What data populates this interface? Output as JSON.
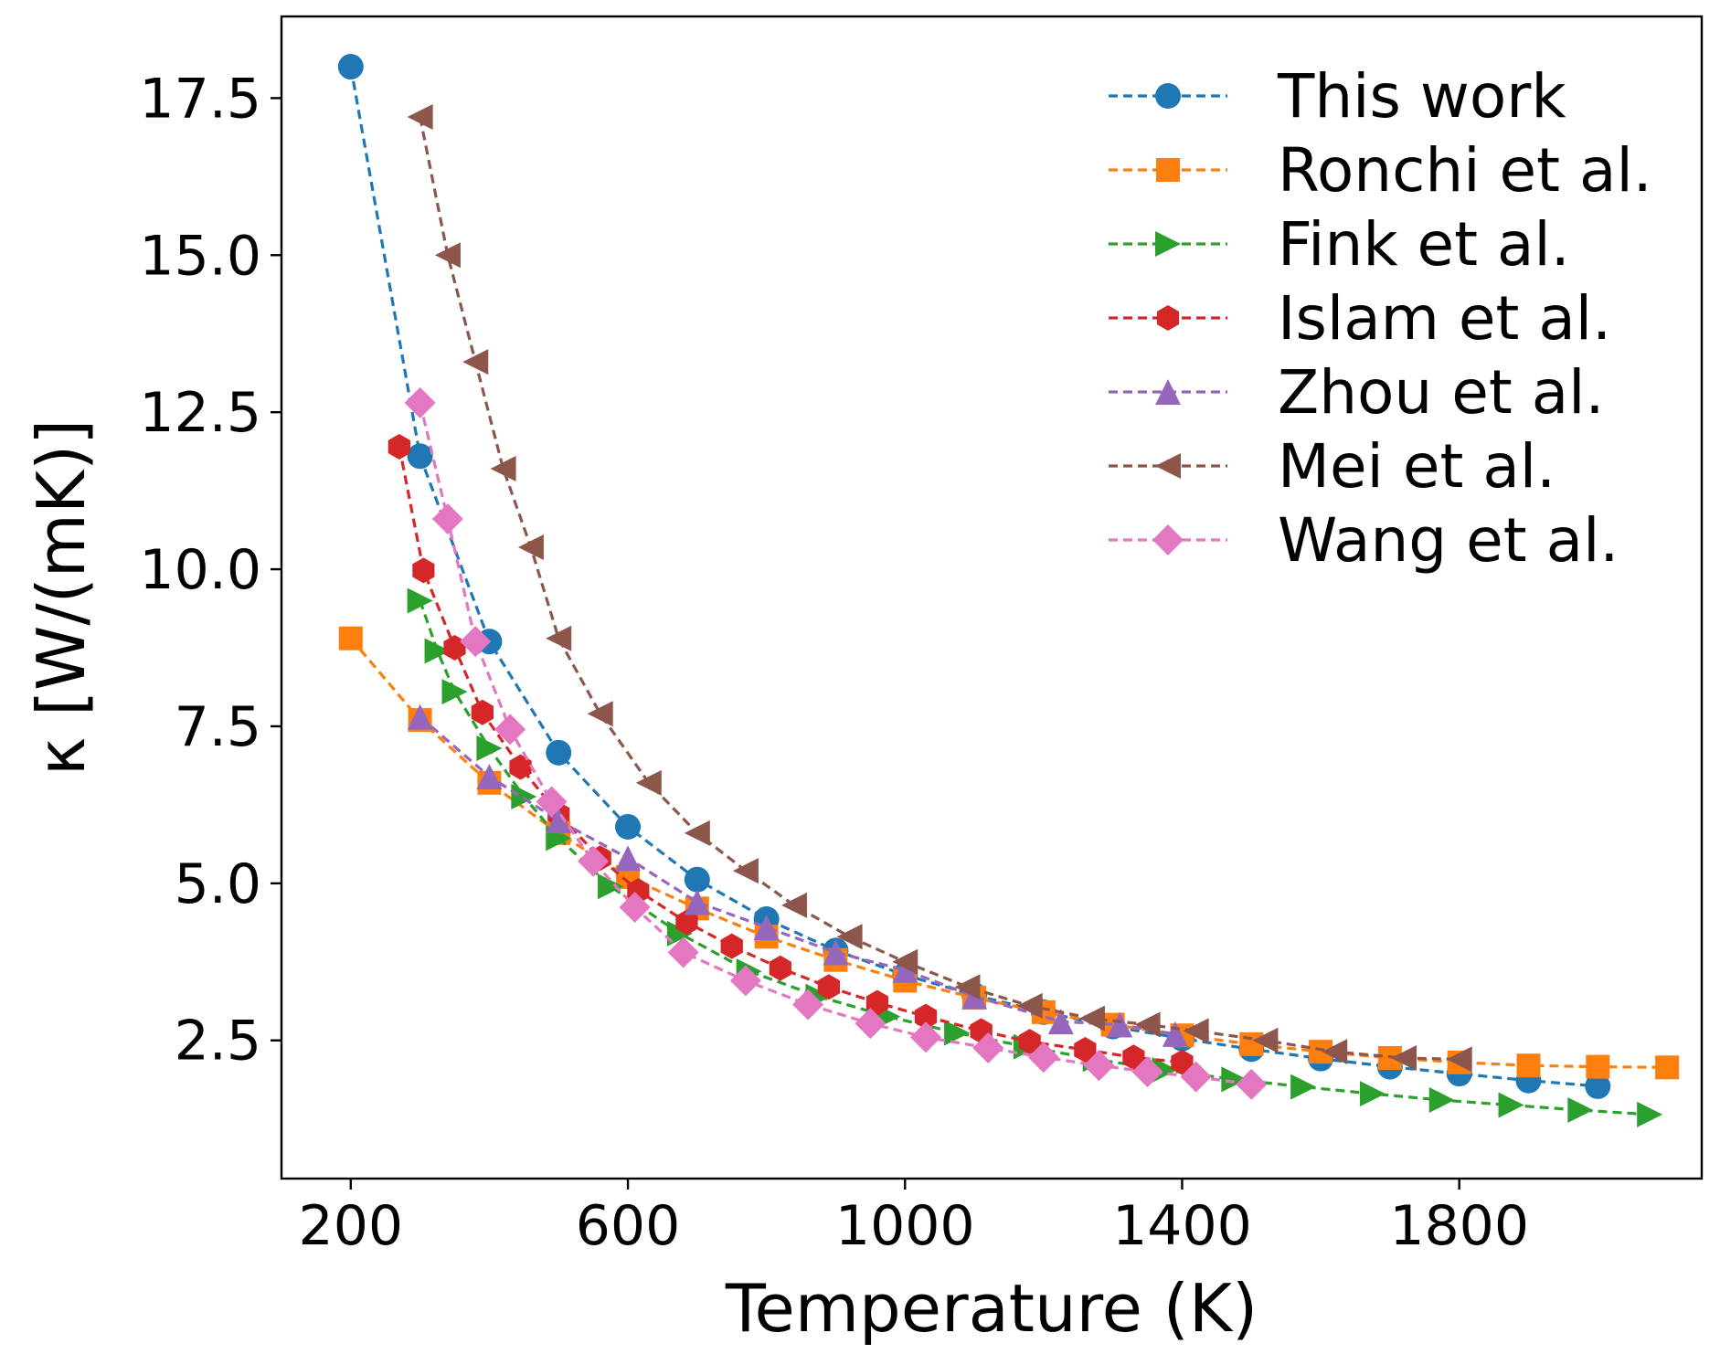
{
  "chart_data": {
    "type": "line",
    "xlabel": "Temperature (K)",
    "ylabel": "κ [W/(mK)]",
    "xlim": [
      100,
      2150
    ],
    "ylim": [
      0.3,
      18.8
    ],
    "xticks": [
      200,
      600,
      1000,
      1400,
      1800
    ],
    "yticks": [
      2.5,
      5.0,
      7.5,
      10.0,
      12.5,
      15.0,
      17.5
    ],
    "xtick_labels": [
      "200",
      "600",
      "1000",
      "1400",
      "1800"
    ],
    "ytick_labels": [
      "2.5",
      "5.0",
      "7.5",
      "10.0",
      "12.5",
      "15.0",
      "17.5"
    ],
    "grid": false,
    "legend_position": "top-right",
    "series": [
      {
        "name": "This work",
        "color": "#1f77b4",
        "marker": "circle",
        "x": [
          200,
          300,
          400,
          500,
          600,
          700,
          800,
          900,
          1000,
          1100,
          1200,
          1300,
          1400,
          1500,
          1600,
          1700,
          1800,
          1900,
          2000
        ],
        "y": [
          18.0,
          11.8,
          8.85,
          7.08,
          5.9,
          5.06,
          4.43,
          3.93,
          3.54,
          3.22,
          2.95,
          2.72,
          2.53,
          2.36,
          2.21,
          2.08,
          1.97,
          1.86,
          1.77
        ]
      },
      {
        "name": "Ronchi et al.",
        "color": "#ff7f0e",
        "marker": "square",
        "x": [
          200,
          300,
          400,
          500,
          600,
          700,
          800,
          900,
          1000,
          1100,
          1200,
          1300,
          1400,
          1500,
          1600,
          1700,
          1800,
          1900,
          2000,
          2100
        ],
        "y": [
          8.9,
          7.6,
          6.6,
          5.8,
          5.1,
          4.6,
          4.15,
          3.78,
          3.45,
          3.18,
          2.95,
          2.75,
          2.58,
          2.44,
          2.32,
          2.22,
          2.15,
          2.1,
          2.08,
          2.07
        ]
      },
      {
        "name": "Fink et al.",
        "color": "#2ca02c",
        "marker": "triangle-right",
        "x": [
          300,
          325,
          350,
          400,
          450,
          500,
          575,
          675,
          775,
          875,
          975,
          1075,
          1175,
          1275,
          1375,
          1475,
          1575,
          1675,
          1775,
          1875,
          1975,
          2075
        ],
        "y": [
          9.5,
          8.7,
          8.05,
          7.15,
          6.38,
          5.72,
          4.95,
          4.2,
          3.6,
          3.2,
          2.88,
          2.62,
          2.4,
          2.2,
          2.03,
          1.88,
          1.76,
          1.65,
          1.55,
          1.47,
          1.39,
          1.32
        ]
      },
      {
        "name": "Islam et al.",
        "color": "#d62728",
        "marker": "hexagon",
        "x": [
          270,
          305,
          350,
          390,
          445,
          500,
          560,
          615,
          685,
          750,
          820,
          890,
          960,
          1030,
          1110,
          1180,
          1260,
          1330,
          1400
        ],
        "y": [
          11.95,
          9.98,
          8.75,
          7.72,
          6.85,
          6.1,
          5.4,
          4.88,
          4.38,
          4.0,
          3.65,
          3.35,
          3.1,
          2.88,
          2.65,
          2.48,
          2.35,
          2.23,
          2.15
        ]
      },
      {
        "name": "Zhou et al.",
        "color": "#9467bd",
        "marker": "triangle-up",
        "x": [
          300,
          400,
          500,
          600,
          700,
          800,
          900,
          1000,
          1100,
          1225,
          1310,
          1390
        ],
        "y": [
          7.65,
          6.7,
          6.0,
          5.4,
          4.7,
          4.3,
          3.9,
          3.62,
          3.2,
          2.8,
          2.75,
          2.6
        ]
      },
      {
        "name": "Mei et al.",
        "color": "#8c564b",
        "marker": "triangle-left",
        "x": [
          300,
          340,
          380,
          420,
          460,
          500,
          560,
          630,
          700,
          770,
          840,
          920,
          1000,
          1090,
          1180,
          1270,
          1350,
          1420,
          1520,
          1620,
          1720,
          1800
        ],
        "y": [
          17.2,
          15.0,
          13.3,
          11.6,
          10.35,
          8.9,
          7.7,
          6.6,
          5.8,
          5.2,
          4.65,
          4.15,
          3.75,
          3.35,
          3.05,
          2.85,
          2.75,
          2.65,
          2.5,
          2.32,
          2.22,
          2.2
        ]
      },
      {
        "name": "Wang et al.",
        "color": "#e377c2",
        "marker": "diamond",
        "x": [
          300,
          340,
          380,
          430,
          490,
          550,
          610,
          680,
          770,
          860,
          950,
          1030,
          1120,
          1200,
          1280,
          1350,
          1420,
          1500
        ],
        "y": [
          12.65,
          10.8,
          8.85,
          7.45,
          6.3,
          5.35,
          4.62,
          3.9,
          3.45,
          3.07,
          2.77,
          2.55,
          2.38,
          2.23,
          2.1,
          2.0,
          1.92,
          1.8
        ]
      }
    ]
  }
}
